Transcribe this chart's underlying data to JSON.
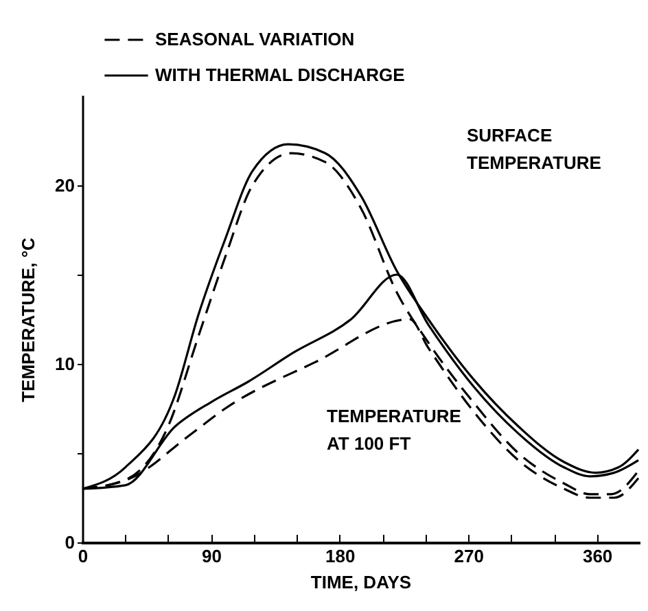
{
  "chart_data": {
    "type": "line",
    "xlabel": "TIME, DAYS",
    "ylabel": "TEMPERATURE, °C",
    "xlim": [
      0,
      389
    ],
    "ylim": [
      0,
      25
    ],
    "xticks": [
      0,
      {
        "value": 30,
        "label": null
      },
      {
        "value": 60,
        "label": null
      },
      90,
      {
        "value": 120,
        "label": null
      },
      {
        "value": 150,
        "label": null
      },
      180,
      {
        "value": 210,
        "label": null
      },
      {
        "value": 240,
        "label": null
      },
      270,
      {
        "value": 300,
        "label": null
      },
      {
        "value": 330,
        "label": null
      },
      360
    ],
    "yticks": [
      0,
      {
        "value": 5,
        "label": null
      },
      10,
      {
        "value": 15,
        "label": null
      },
      20
    ],
    "grid": false,
    "legend": "top",
    "marker": "none",
    "series": [
      {
        "name": "SEASONAL VARIATION",
        "color": "#000000",
        "line_style": "dashed",
        "x": [
          0,
          30,
          60,
          81,
          100,
          119,
          146,
          170,
          195,
          220,
          242,
          274,
          305,
          337,
          355,
          370,
          389
        ],
        "values": [
          3.0,
          3.5,
          6.5,
          11.5,
          16,
          20,
          21.8,
          21.3,
          18.7,
          14,
          11.2,
          7.8,
          5.0,
          3.3,
          2.7,
          2.7,
          4.0
        ]
      },
      {
        "name": "WITH THERMAL DISCHARGE",
        "color": "#000000",
        "line_style": "solid",
        "x": [
          0,
          30,
          65,
          81,
          100,
          119,
          144,
          170,
          195,
          220,
          242,
          274,
          305,
          337,
          359,
          375,
          389
        ],
        "values": [
          3.0,
          4.2,
          8.3,
          12.7,
          17,
          20.8,
          22.3,
          21.8,
          19.4,
          15.2,
          12.5,
          9.1,
          6.5,
          4.5,
          3.9,
          4.2,
          5.2
        ]
      },
      {
        "color": "#000000",
        "line_style": "dashed",
        "x": [
          0,
          34,
          75,
          100,
          163,
          229,
          242,
          274,
          305,
          337,
          355,
          372,
          389
        ],
        "values": [
          3.0,
          3.6,
          6.0,
          7.5,
          10.1,
          12.5,
          10.9,
          7.3,
          4.6,
          3.0,
          2.5,
          2.5,
          3.6
        ]
      },
      {
        "color": "#000000",
        "line_style": "solid",
        "x": [
          0,
          30,
          65,
          91,
          116,
          147,
          188,
          220,
          242,
          274,
          305,
          337,
          355,
          372,
          389
        ],
        "values": [
          3.0,
          3.2,
          6.5,
          7.9,
          9.0,
          10.6,
          12.5,
          15.0,
          12.2,
          8.7,
          6.1,
          4.2,
          3.7,
          3.9,
          4.6
        ]
      }
    ],
    "annotations": [
      "SURFACE\nTEMPERATURE",
      "TEMPERATURE\nAT 100 FT"
    ]
  }
}
